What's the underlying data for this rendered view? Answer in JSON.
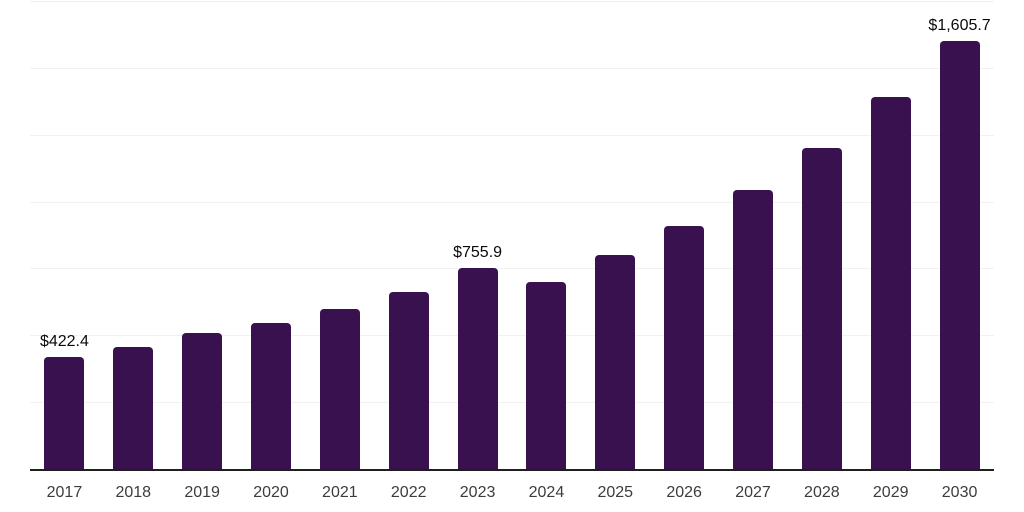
{
  "chart_data": {
    "type": "bar",
    "title": "",
    "xlabel": "",
    "ylabel": "",
    "categories": [
      "2017",
      "2018",
      "2019",
      "2020",
      "2021",
      "2022",
      "2023",
      "2024",
      "2025",
      "2026",
      "2027",
      "2028",
      "2029",
      "2030"
    ],
    "values": [
      422.4,
      460.0,
      512.0,
      550.0,
      602.0,
      666.0,
      755.9,
      703.0,
      804.0,
      912.0,
      1047.0,
      1204.0,
      1395.0,
      1605.7
    ],
    "value_labels": [
      {
        "index": 0,
        "text": "$422.4"
      },
      {
        "index": 6,
        "text": "$755.9"
      },
      {
        "index": 13,
        "text": "$1,605.7"
      }
    ],
    "ylim": [
      0,
      1750
    ],
    "gridline_step": 250,
    "grid": true,
    "legend": false,
    "y_tick_labels_visible": false
  },
  "colors": {
    "bar": "#39114F",
    "gridline": "#f1f1f1",
    "axis": "#1f1f1f",
    "year_label": "#3c3c3c",
    "value_label": "#0a0a0a",
    "background": "#ffffff"
  }
}
